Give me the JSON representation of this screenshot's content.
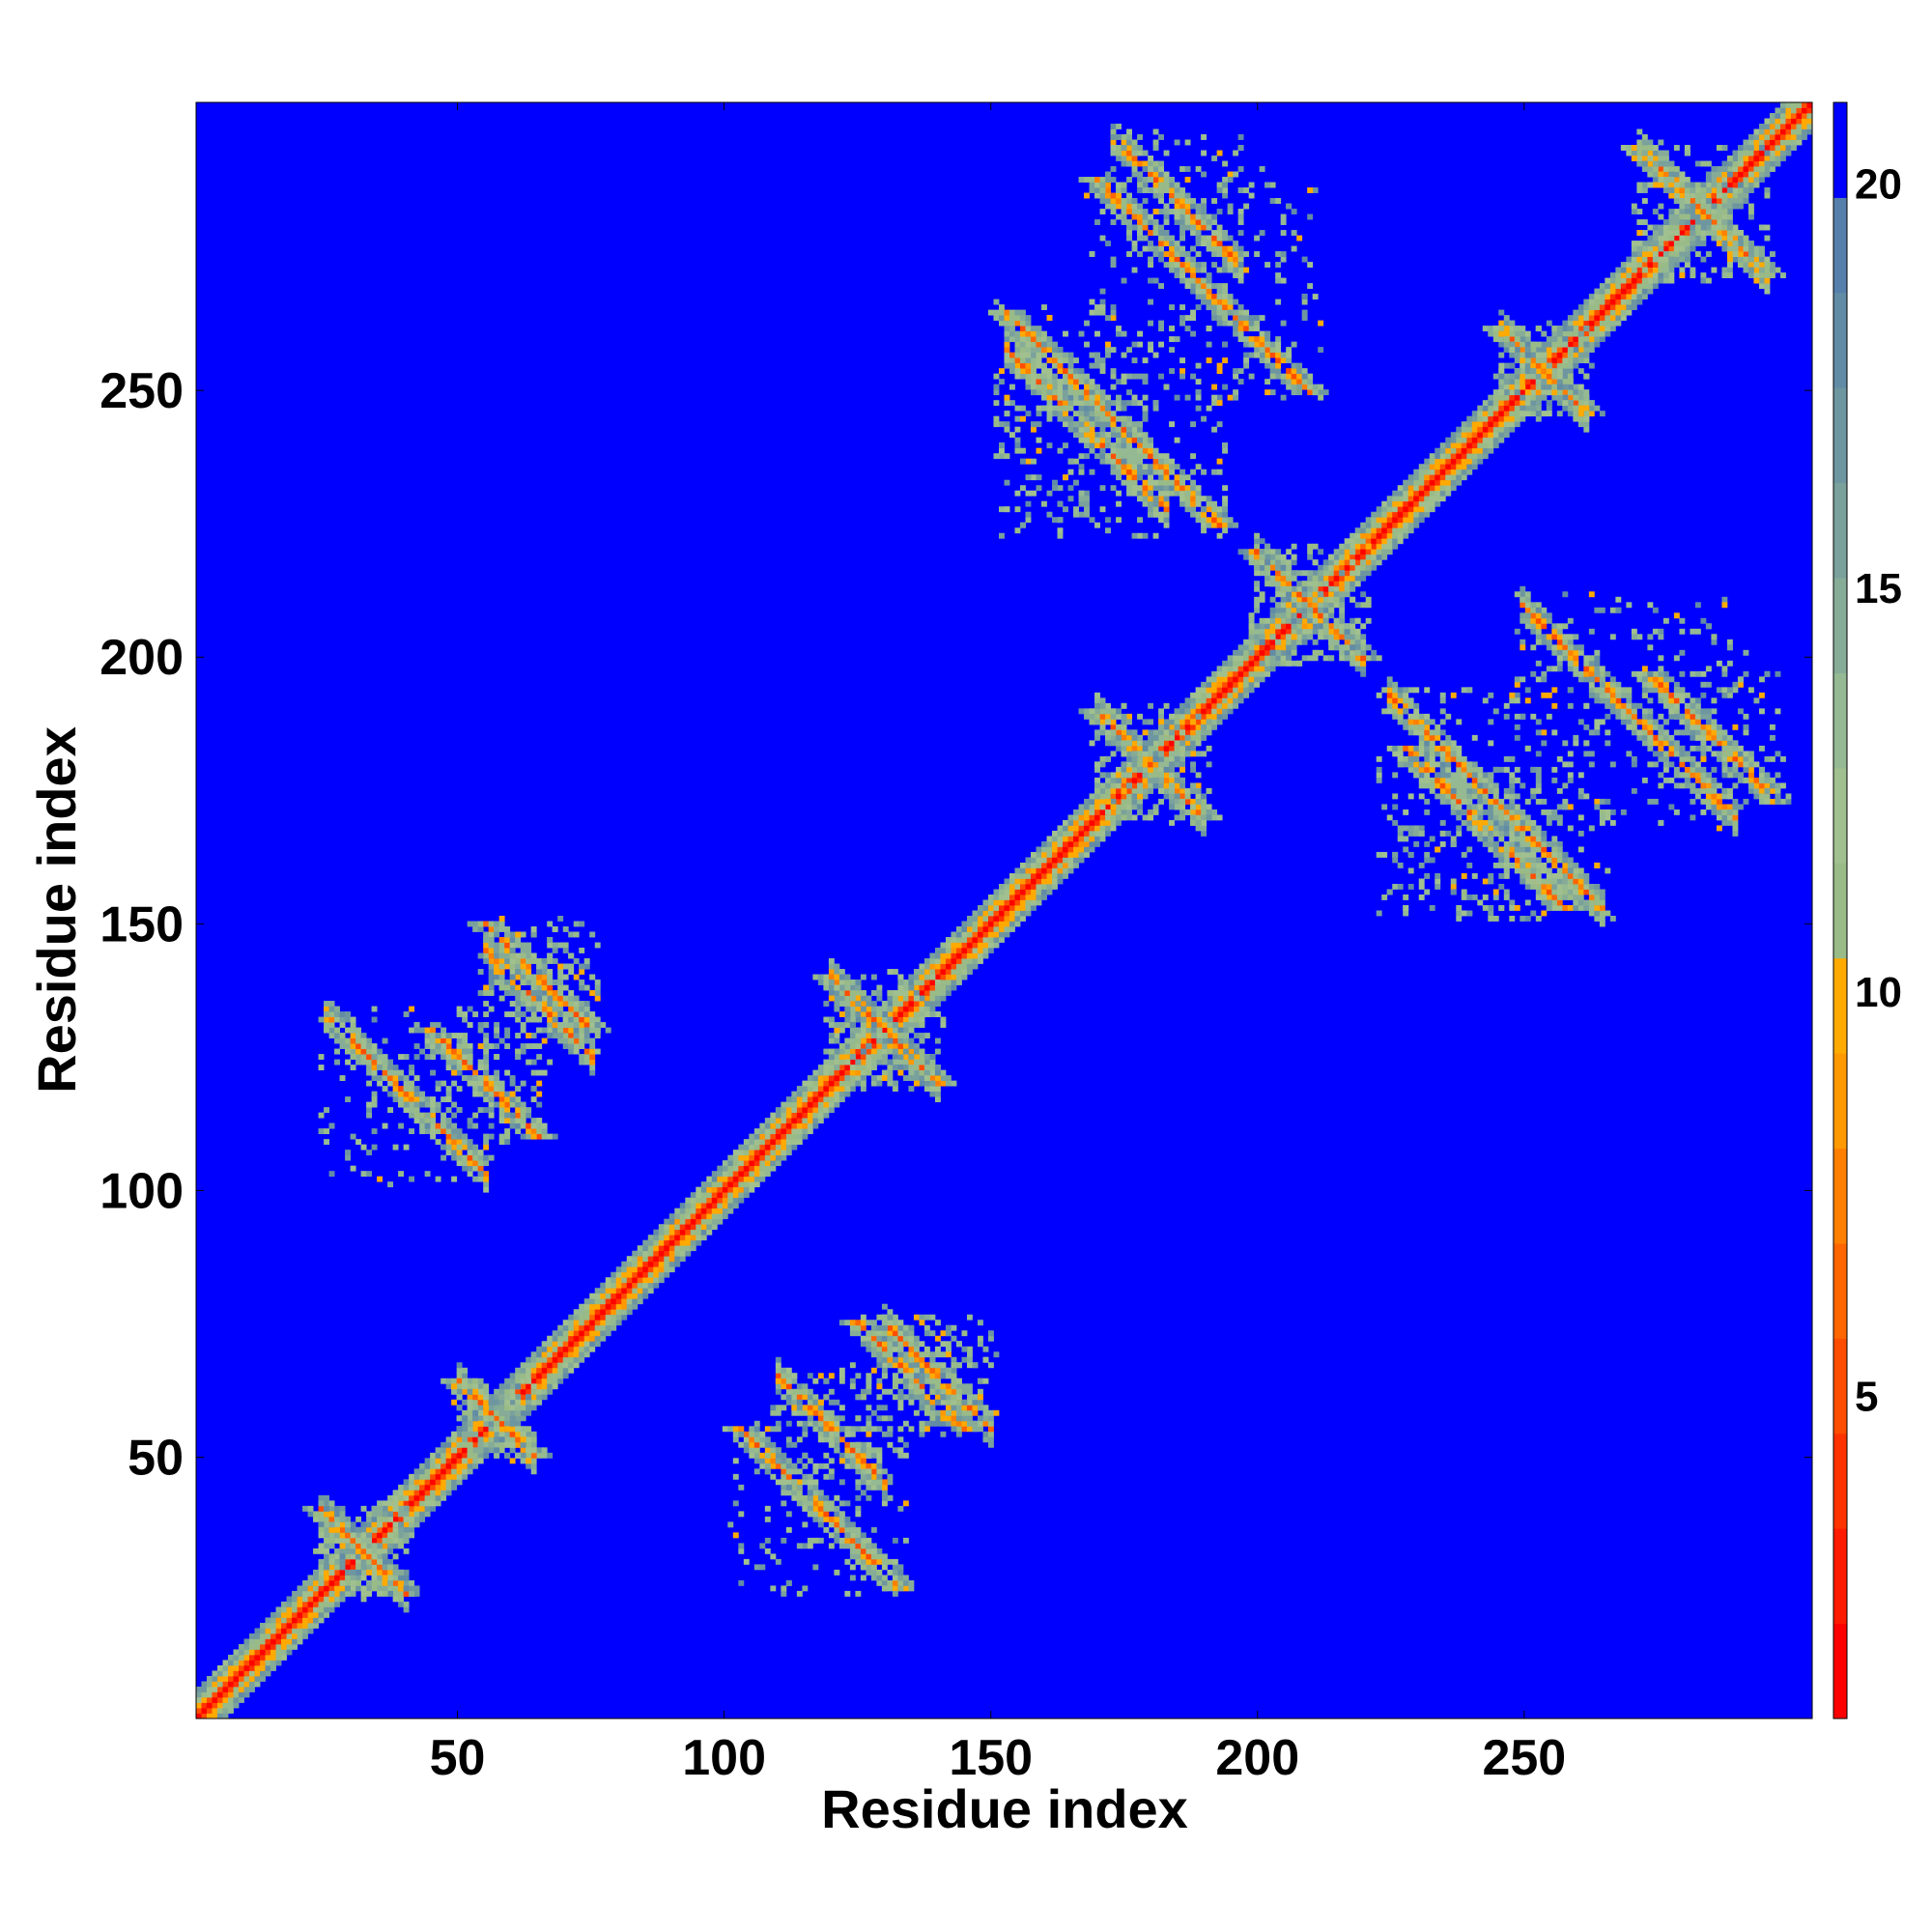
{
  "chart_data": {
    "type": "heatmap",
    "title": "",
    "xlabel": "Residue index",
    "ylabel": "Residue index",
    "n_residues": 304,
    "xlim": [
      1,
      304
    ],
    "ylim": [
      1,
      304
    ],
    "x_ticks": [
      50,
      100,
      150,
      200,
      250
    ],
    "y_ticks": [
      50,
      100,
      150,
      200,
      250
    ],
    "colorbar": {
      "min": 1,
      "max": 21,
      "ticks": [
        5,
        10,
        15,
        20
      ],
      "colors": [
        "#ff0000",
        "#ff1a00",
        "#ff3300",
        "#ff4d00",
        "#ff6600",
        "#ff8000",
        "#ff9900",
        "#ffaa00",
        "#99bb88",
        "#a1c08f",
        "#94b993",
        "#86ac98",
        "#7aa19c",
        "#6e96a0",
        "#628ba6",
        "#5680ab",
        "#0000ff"
      ]
    },
    "background_color": "#0000ff",
    "grid": false,
    "diagonal": "contact distance near 0 along residue i = j",
    "contact_features": [
      {
        "i": [
          28,
          36
        ],
        "j": [
          28,
          36
        ],
        "type": "cross"
      },
      {
        "i": [
          53,
          60
        ],
        "j": [
          53,
          60
        ],
        "type": "cross"
      },
      {
        "i": [
          125,
          135
        ],
        "j": [
          125,
          135
        ],
        "type": "cross"
      },
      {
        "i": [
          175,
          185
        ],
        "j": [
          175,
          185
        ],
        "type": "cross"
      },
      {
        "i": [
          205,
          215
        ],
        "j": [
          205,
          215
        ],
        "type": "cross"
      },
      {
        "i": [
          250,
          258
        ],
        "j": [
          250,
          258
        ],
        "type": "cross"
      },
      {
        "i": [
          278,
          290
        ],
        "j": [
          278,
          290
        ],
        "type": "cross"
      },
      {
        "i": [
          35,
          45
        ],
        "j": [
          110,
          125
        ],
        "type": "anti-band"
      },
      {
        "i": [
          60,
          70
        ],
        "j": [
          130,
          140
        ],
        "type": "anti-band"
      },
      {
        "i": [
          115,
          125
        ],
        "j": [
          50,
          60
        ],
        "type": "anti-band"
      },
      {
        "i": [
          135,
          145
        ],
        "j": [
          60,
          70
        ],
        "type": "anti-band"
      },
      {
        "i": [
          160,
          175
        ],
        "j": [
          235,
          250
        ],
        "type": "anti-band"
      },
      {
        "i": [
          180,
          190
        ],
        "j": [
          280,
          292
        ],
        "type": "anti-band"
      },
      {
        "i": [
          235,
          255
        ],
        "j": [
          165,
          180
        ],
        "type": "anti-band"
      },
      {
        "i": [
          265,
          275
        ],
        "j": [
          180,
          200
        ],
        "type": "anti-band"
      }
    ]
  }
}
